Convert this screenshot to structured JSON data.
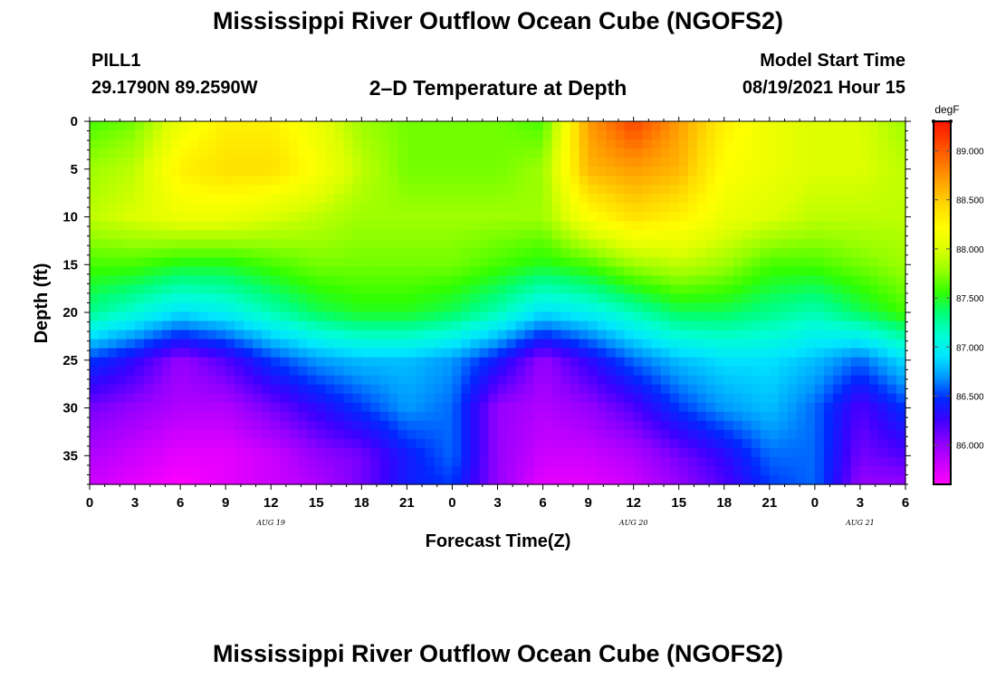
{
  "header": {
    "title": "Mississippi River Outflow Ocean Cube (NGOFS2)",
    "station_id": "PILL1",
    "station_coords": "29.1790N  89.2590W",
    "subtitle": "2–D Temperature at Depth",
    "model_start_label": "Model Start Time",
    "model_start_time": "08/19/2021 Hour 15"
  },
  "footer": {
    "title": "Mississippi River Outflow Ocean Cube (NGOFS2)"
  },
  "chart_data": {
    "type": "heatmap",
    "title": "2–D Temperature at Depth",
    "xlabel": "Forecast Time(Z)",
    "ylabel": "Depth (ft)",
    "x_hours_range": [
      0,
      54
    ],
    "x_tick_labels": [
      "0",
      "3",
      "6",
      "9",
      "12",
      "15",
      "18",
      "21",
      "0",
      "3",
      "6",
      "9",
      "12",
      "15",
      "18",
      "21",
      "0",
      "3",
      "6"
    ],
    "date_labels": [
      {
        "label": "AUG 19",
        "hour": 12
      },
      {
        "label": "AUG 20",
        "hour": 36
      },
      {
        "label": "AUG 21",
        "hour": 51
      }
    ],
    "y_range": [
      0,
      38
    ],
    "y_ticks": [
      0,
      5,
      10,
      15,
      20,
      25,
      30,
      35
    ],
    "colorbar": {
      "unit": "degF",
      "range": [
        85.6,
        89.3
      ],
      "tick_values": [
        86.0,
        86.5,
        87.0,
        87.5,
        88.0,
        88.5,
        89.0
      ],
      "tick_labels": [
        "86.000",
        "86.500",
        "87.000",
        "87.500",
        "88.000",
        "88.500",
        "89.000"
      ],
      "colors": [
        "#ff00ff",
        "#c800ff",
        "#8c00ff",
        "#3c00ff",
        "#0028ff",
        "#0096ff",
        "#00e6ff",
        "#00ffd2",
        "#00ff78",
        "#32ff00",
        "#96ff00",
        "#dcff00",
        "#ffff00",
        "#ffdc00",
        "#ffaa00",
        "#ff7800",
        "#ff4600",
        "#ff1400"
      ]
    },
    "depths": [
      0,
      5,
      10,
      15,
      20,
      25,
      30,
      35,
      38
    ],
    "hours": [
      0,
      3,
      6,
      9,
      12,
      15,
      18,
      21,
      24,
      27,
      30,
      33,
      36,
      39,
      42,
      45,
      48,
      51,
      54
    ],
    "temperature_degF": [
      [
        87.6,
        87.7,
        88.1,
        88.3,
        88.3,
        88.1,
        87.8,
        87.7,
        87.7,
        87.7,
        87.6,
        88.7,
        89.1,
        88.7,
        88.3,
        88.1,
        88.0,
        88.0,
        87.8
      ],
      [
        87.8,
        87.9,
        88.3,
        88.4,
        88.4,
        88.2,
        87.9,
        87.7,
        87.7,
        87.7,
        87.8,
        88.6,
        88.7,
        88.6,
        88.2,
        88.1,
        88.0,
        88.0,
        87.9
      ],
      [
        87.9,
        88.0,
        88.1,
        88.1,
        88.0,
        87.9,
        87.8,
        87.8,
        87.8,
        87.8,
        87.8,
        88.2,
        88.4,
        88.3,
        88.1,
        88.0,
        87.9,
        87.9,
        87.9
      ],
      [
        87.6,
        87.6,
        87.5,
        87.5,
        87.6,
        87.7,
        87.7,
        87.7,
        87.7,
        87.6,
        87.5,
        87.6,
        87.8,
        87.9,
        87.8,
        87.6,
        87.6,
        87.7,
        87.8
      ],
      [
        87.3,
        87.1,
        86.9,
        87.0,
        87.2,
        87.4,
        87.5,
        87.5,
        87.4,
        87.2,
        86.9,
        87.0,
        87.2,
        87.4,
        87.4,
        87.3,
        87.2,
        87.4,
        87.6
      ],
      [
        86.5,
        86.3,
        86.0,
        86.2,
        86.5,
        86.7,
        86.8,
        86.8,
        86.7,
        86.4,
        86.0,
        86.3,
        86.6,
        86.8,
        86.9,
        86.9,
        86.8,
        86.6,
        86.9
      ],
      [
        86.1,
        86.0,
        85.9,
        85.9,
        86.1,
        86.3,
        86.5,
        86.7,
        86.6,
        86.0,
        85.9,
        86.0,
        86.2,
        86.5,
        86.7,
        86.8,
        86.6,
        86.2,
        86.5
      ],
      [
        85.9,
        85.8,
        85.7,
        85.7,
        85.8,
        86.0,
        86.1,
        86.4,
        86.6,
        86.0,
        85.8,
        85.8,
        85.9,
        86.1,
        86.3,
        86.6,
        86.6,
        86.1,
        86.2
      ],
      [
        85.8,
        85.7,
        85.6,
        85.7,
        85.8,
        85.9,
        86.1,
        86.4,
        86.5,
        86.0,
        85.7,
        85.7,
        85.8,
        86.0,
        86.2,
        86.5,
        86.6,
        86.0,
        86.0
      ]
    ]
  }
}
